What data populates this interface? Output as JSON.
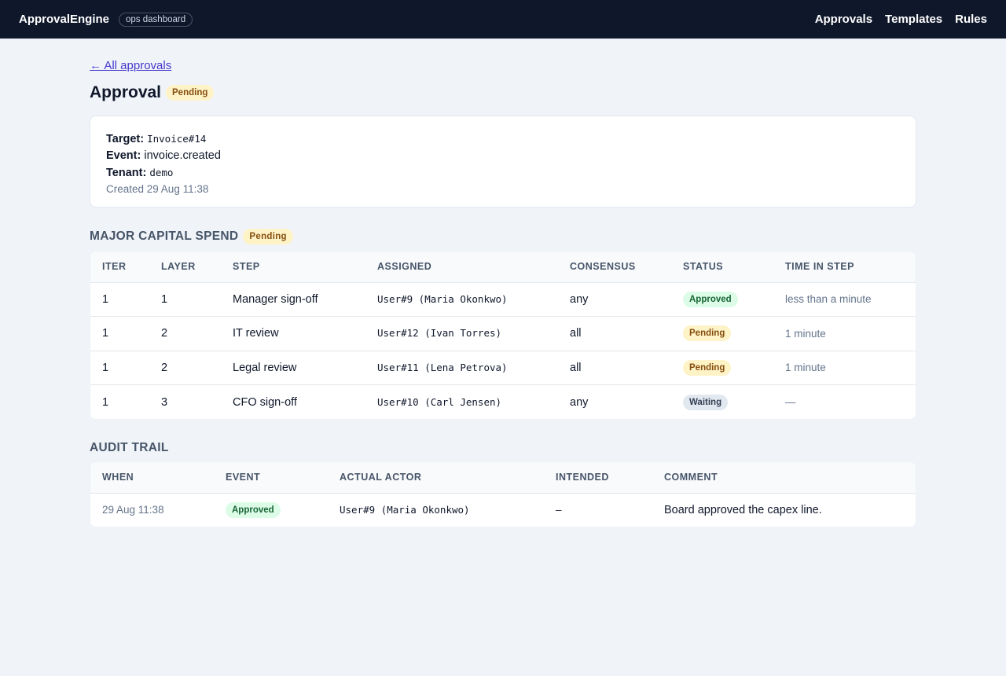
{
  "header": {
    "brand": "ApprovalEngine",
    "tag": "ops dashboard",
    "nav": [
      "Approvals",
      "Templates",
      "Rules"
    ]
  },
  "back_link": "← All approvals",
  "page": {
    "title": "Approval",
    "status": "Pending"
  },
  "info": {
    "target_label": "Target:",
    "target_value": "Invoice#14",
    "event_label": "Event:",
    "event_value": "invoice.created",
    "tenant_label": "Tenant:",
    "tenant_value": "demo",
    "created": "Created 29 Aug 11:38"
  },
  "workflow": {
    "title": "MAJOR CAPITAL SPEND",
    "status": "Pending",
    "columns": [
      "ITER",
      "LAYER",
      "STEP",
      "ASSIGNED",
      "CONSENSUS",
      "STATUS",
      "TIME IN STEP"
    ],
    "rows": [
      {
        "iter": "1",
        "layer": "1",
        "step": "Manager sign-off",
        "assigned": "User#9 (Maria Okonkwo)",
        "consensus": "any",
        "status": "Approved",
        "time": "less than a minute"
      },
      {
        "iter": "1",
        "layer": "2",
        "step": "IT review",
        "assigned": "User#12 (Ivan Torres)",
        "consensus": "all",
        "status": "Pending",
        "time": "1 minute"
      },
      {
        "iter": "1",
        "layer": "2",
        "step": "Legal review",
        "assigned": "User#11 (Lena Petrova)",
        "consensus": "all",
        "status": "Pending",
        "time": "1 minute"
      },
      {
        "iter": "1",
        "layer": "3",
        "step": "CFO sign-off",
        "assigned": "User#10 (Carl Jensen)",
        "consensus": "any",
        "status": "Waiting",
        "time": "—"
      }
    ]
  },
  "audit": {
    "title": "AUDIT TRAIL",
    "columns": [
      "WHEN",
      "EVENT",
      "ACTUAL ACTOR",
      "INTENDED",
      "COMMENT"
    ],
    "rows": [
      {
        "when": "29 Aug 11:38",
        "event": "Approved",
        "actor": "User#9 (Maria Okonkwo)",
        "intended": "—",
        "comment": "Board approved the capex line."
      }
    ]
  }
}
